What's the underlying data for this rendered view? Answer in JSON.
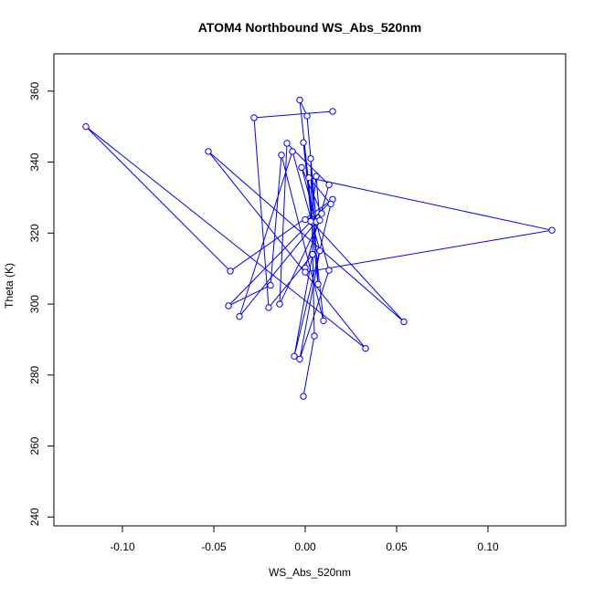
{
  "chart_data": {
    "type": "line",
    "title": "ATOM4 Northbound WS_Abs_520nm",
    "xlabel": "WS_Abs_520nm",
    "ylabel": "Theta (K)",
    "xlim": [
      -0.1375,
      0.1425
    ],
    "ylim": [
      237.5,
      370.5
    ],
    "x_ticks": [
      -0.1,
      -0.05,
      0.0,
      0.05,
      0.1
    ],
    "x_tick_labels": [
      "-0.10",
      "-0.05",
      "0.00",
      "0.05",
      "0.10"
    ],
    "y_ticks": [
      240,
      260,
      280,
      300,
      320,
      340,
      360
    ],
    "y_tick_labels": [
      "240",
      "260",
      "280",
      "300",
      "320",
      "340",
      "360"
    ],
    "grid": false,
    "marker": "open-circle",
    "series": [
      {
        "color": "#0000ff",
        "points": [
          {
            "x": -0.001,
            "y": 274.0
          },
          {
            "x": 0.005,
            "y": 291.0
          },
          {
            "x": 0.003,
            "y": 341.0
          },
          {
            "x": 0.007,
            "y": 305.6
          },
          {
            "x": -0.001,
            "y": 345.5
          },
          {
            "x": 0.004,
            "y": 323.0
          },
          {
            "x": 0.054,
            "y": 295.0
          },
          {
            "x": -0.053,
            "y": 343.0
          },
          {
            "x": 0.033,
            "y": 287.5
          },
          {
            "x": -0.12,
            "y": 350.0
          },
          {
            "x": -0.041,
            "y": 309.3
          },
          {
            "x": 0.015,
            "y": 329.5
          },
          {
            "x": -0.042,
            "y": 299.5
          },
          {
            "x": -0.019,
            "y": 305.3
          },
          {
            "x": -0.013,
            "y": 342.0
          },
          {
            "x": 0.01,
            "y": 295.3
          },
          {
            "x": -0.003,
            "y": 357.5
          },
          {
            "x": 0.001,
            "y": 353.0
          },
          {
            "x": 0.006,
            "y": 323.2
          },
          {
            "x": -0.036,
            "y": 296.5
          },
          {
            "x": -0.007,
            "y": 343.0
          },
          {
            "x": 0.008,
            "y": 315.0
          },
          {
            "x": -0.003,
            "y": 284.5
          },
          {
            "x": 0.013,
            "y": 309.5
          },
          {
            "x": -0.002,
            "y": 338.5
          },
          {
            "x": 0.009,
            "y": 325.5
          },
          {
            "x": 0.0,
            "y": 323.8
          },
          {
            "x": 0.003,
            "y": 323.3
          },
          {
            "x": 0.006,
            "y": 336.0
          },
          {
            "x": 0.008,
            "y": 323.6
          },
          {
            "x": -0.014,
            "y": 300.0
          },
          {
            "x": -0.01,
            "y": 345.3
          },
          {
            "x": 0.013,
            "y": 333.6
          },
          {
            "x": 0.0,
            "y": 310.2
          },
          {
            "x": 0.0,
            "y": 309.0
          },
          {
            "x": 0.135,
            "y": 320.8
          },
          {
            "x": 0.002,
            "y": 335.6
          },
          {
            "x": 0.014,
            "y": 328.2
          },
          {
            "x": -0.006,
            "y": 285.3
          },
          {
            "x": 0.004,
            "y": 314.0
          },
          {
            "x": -0.02,
            "y": 299.0
          },
          {
            "x": -0.028,
            "y": 352.5
          },
          {
            "x": 0.015,
            "y": 354.3
          }
        ]
      }
    ]
  }
}
